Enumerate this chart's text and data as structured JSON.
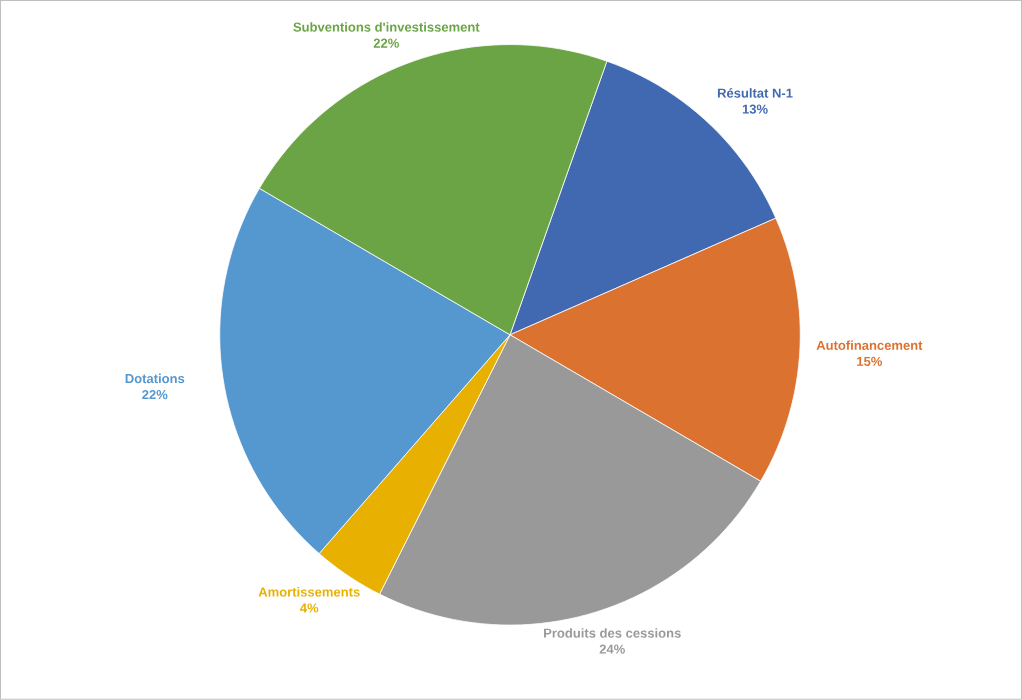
{
  "chart_data": {
    "type": "pie",
    "categories": [
      "Résultat N-1",
      "Autofinancement",
      "Produits des cessions",
      "Amortissements",
      "Dotations",
      "Subventions d'investissement"
    ],
    "values": [
      13,
      15,
      24,
      4,
      22,
      22
    ],
    "colors": [
      "#4169b2",
      "#dc7230",
      "#999999",
      "#e8b000",
      "#5597cf",
      "#6aa444"
    ],
    "value_labels": [
      "13%",
      "15%",
      "24%",
      "4%",
      "22%",
      "22%"
    ]
  }
}
